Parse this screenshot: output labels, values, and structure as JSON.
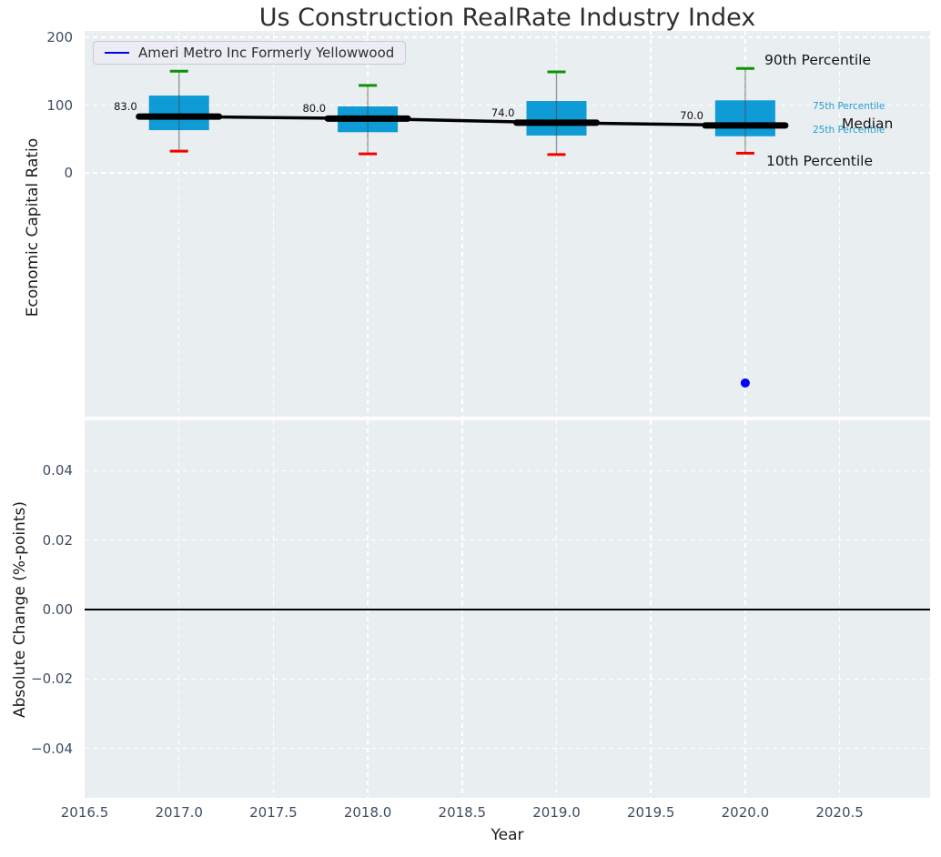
{
  "title": "Us Construction RealRate Industry Index",
  "legend": {
    "label": "Ameri Metro Inc Formerly Yellowwood"
  },
  "axes": {
    "xlabel": "Year",
    "xticks": [
      {
        "v": 2016.5,
        "label": "2016.5"
      },
      {
        "v": 2017.0,
        "label": "2017.0"
      },
      {
        "v": 2017.5,
        "label": "2017.5"
      },
      {
        "v": 2018.0,
        "label": "2018.0"
      },
      {
        "v": 2018.5,
        "label": "2018.5"
      },
      {
        "v": 2019.0,
        "label": "2019.0"
      },
      {
        "v": 2019.5,
        "label": "2019.5"
      },
      {
        "v": 2020.0,
        "label": "2020.0"
      },
      {
        "v": 2020.5,
        "label": "2020.5"
      }
    ],
    "top": {
      "ylabel": "Economic Capital Ratio",
      "yticks": [
        {
          "v": 200,
          "label": "200"
        },
        {
          "v": 100,
          "label": "100"
        },
        {
          "v": 0,
          "label": "0"
        }
      ]
    },
    "bottom": {
      "ylabel": "Absolute Change (%-points)",
      "yticks": [
        {
          "v": 0.04,
          "label": "0.04"
        },
        {
          "v": 0.02,
          "label": "0.02"
        },
        {
          "v": 0,
          "label": "0.00"
        },
        {
          "v": -0.02,
          "label": "−0.02"
        },
        {
          "v": -0.04,
          "label": "−0.04"
        }
      ]
    }
  },
  "annotations": [
    {
      "id": "p90",
      "label": "90th Percentile",
      "style": "large-dark"
    },
    {
      "id": "p75",
      "label": "75th Percentile",
      "style": "small-cyan"
    },
    {
      "id": "p25",
      "label": "25th Percentile",
      "style": "small-cyan"
    },
    {
      "id": "p10",
      "label": "10th Percentile",
      "style": "large-dark"
    },
    {
      "id": "median",
      "label": "Median",
      "style": "large-dark"
    }
  ],
  "chart_data": [
    {
      "type": "boxplot",
      "title": "Us Construction RealRate Industry Index",
      "xlabel": "Year",
      "ylabel": "Economic Capital Ratio",
      "xlim": [
        2016.5,
        2021.0
      ],
      "ylim": [
        -365,
        210
      ],
      "grid": true,
      "legend_position": "upper left",
      "years": [
        2017,
        2018,
        2019,
        2020
      ],
      "series": [
        {
          "name": "median",
          "values": [
            83,
            80,
            74,
            70
          ]
        },
        {
          "name": "p75",
          "values": [
            114,
            98,
            106,
            107
          ]
        },
        {
          "name": "p25",
          "values": [
            63,
            60,
            55,
            54
          ]
        },
        {
          "name": "p90",
          "values": [
            150,
            129,
            149,
            154
          ]
        },
        {
          "name": "p10",
          "values": [
            32,
            28,
            27,
            29
          ]
        }
      ],
      "median_labels": [
        "83.0",
        "80.0",
        "74.0",
        "70.0"
      ],
      "company": {
        "name": "Ameri Metro Inc Formerly Yellowwood",
        "points": [
          {
            "x": 2020,
            "y": -310
          }
        ]
      }
    },
    {
      "type": "line",
      "xlabel": "Year",
      "ylabel": "Absolute Change (%-points)",
      "xlim": [
        2016.5,
        2021.0
      ],
      "ylim": [
        -0.055,
        0.055
      ],
      "grid": true,
      "zero_line": 0.0,
      "series": []
    }
  ],
  "colors": {
    "box_fill": "#0e9bd6",
    "median_line": "#000000",
    "whisker": "#4a4a4a",
    "cap_90th": "#0b9400",
    "cap_10th": "#f40000",
    "company_point": "#0000ff",
    "legend_line": "#0000e0",
    "percentile_text": "#279dd2",
    "axes_bg": "#e9eef0",
    "grid": "#ffffff",
    "tick_text": "#3e4d63",
    "title_text": "#2e2e2e"
  }
}
